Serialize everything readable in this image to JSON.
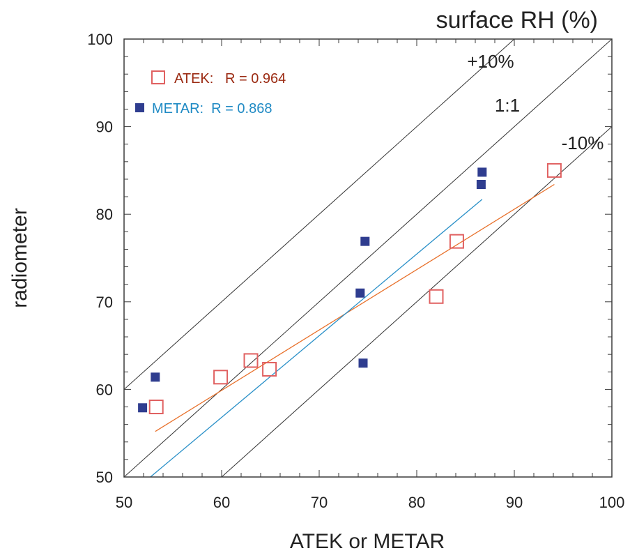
{
  "chart_data": {
    "type": "scatter",
    "title": "surface RH (%)",
    "xlabel": "ATEK or METAR",
    "ylabel": "radiometer",
    "xlim": [
      50,
      100
    ],
    "ylim": [
      50,
      100
    ],
    "x_ticks": [
      "50",
      "60",
      "70",
      "80",
      "90",
      "100"
    ],
    "y_ticks": [
      "50",
      "60",
      "70",
      "80",
      "90",
      "100"
    ],
    "grid": false,
    "legend_position": "top-left",
    "reference_lines": [
      {
        "label": "+10%",
        "offset": 10
      },
      {
        "label": "1:1",
        "offset": 0
      },
      {
        "label": "-10%",
        "offset": -10
      }
    ],
    "series": [
      {
        "name": "ATEK",
        "legend": "ATEK:   R = 0.964",
        "marker": "open-square",
        "color": "#e06060",
        "text_color": "#9b2a12",
        "fit_color": "#e8702a",
        "fit": {
          "x": [
            53.2,
            94.1
          ],
          "y": [
            55.2,
            83.4
          ]
        },
        "points": [
          {
            "x": 53.3,
            "y": 58.0
          },
          {
            "x": 59.9,
            "y": 61.4
          },
          {
            "x": 63.0,
            "y": 63.3
          },
          {
            "x": 64.9,
            "y": 62.3
          },
          {
            "x": 82.0,
            "y": 70.6
          },
          {
            "x": 84.1,
            "y": 76.9
          },
          {
            "x": 94.1,
            "y": 85.0
          }
        ]
      },
      {
        "name": "METAR",
        "legend": "METAR:  R = 0.868",
        "marker": "filled-square",
        "color": "#2f3d8f",
        "text_color": "#1f8ac4",
        "fit_color": "#2a90c8",
        "fit": {
          "x": [
            52.7,
            86.7
          ],
          "y": [
            50.0,
            81.7
          ]
        },
        "points": [
          {
            "x": 51.9,
            "y": 57.9
          },
          {
            "x": 53.2,
            "y": 61.4
          },
          {
            "x": 74.2,
            "y": 71.0
          },
          {
            "x": 74.5,
            "y": 63.0
          },
          {
            "x": 74.7,
            "y": 76.9
          },
          {
            "x": 86.6,
            "y": 83.4
          },
          {
            "x": 86.7,
            "y": 84.8
          }
        ]
      }
    ]
  }
}
